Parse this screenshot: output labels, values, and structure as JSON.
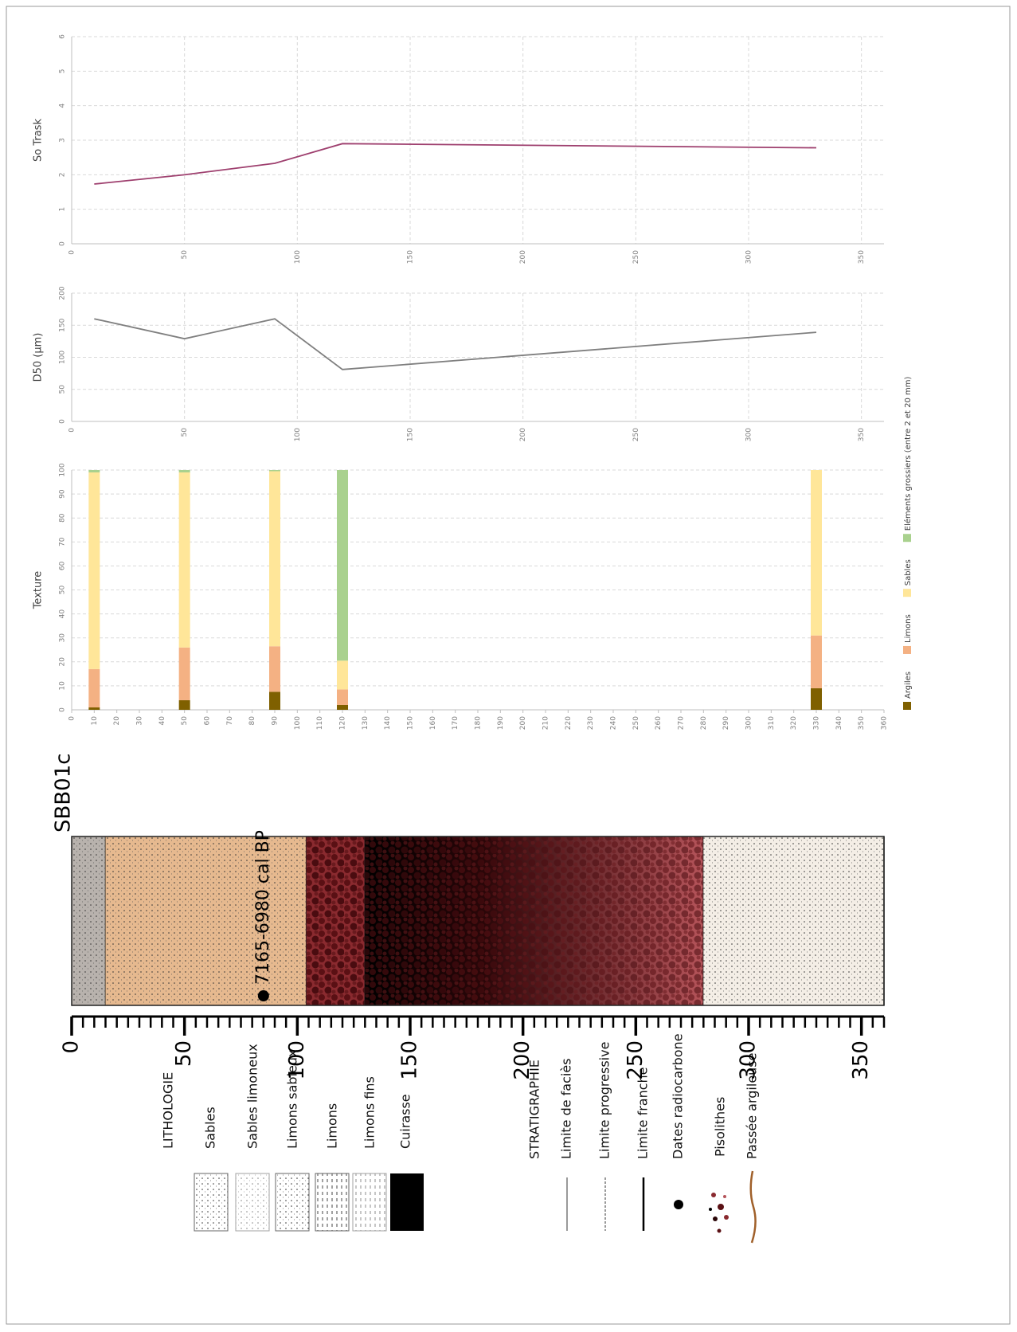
{
  "chart_data": [
    {
      "type": "line",
      "ylabel": "So Trask",
      "x": [
        10,
        50,
        90,
        120,
        330
      ],
      "series": [
        {
          "color": "#9e3f6e",
          "values": [
            1.73,
            2.0,
            2.33,
            2.9,
            2.78
          ]
        }
      ],
      "xlim": [
        0,
        360
      ],
      "ylim": [
        0,
        6
      ],
      "xticks": [
        0,
        50,
        100,
        150,
        200,
        250,
        300,
        350
      ],
      "yticks": [
        0,
        1,
        2,
        3,
        4,
        5,
        6
      ],
      "grid": true
    },
    {
      "type": "line",
      "ylabel": "D50 (µm)",
      "x": [
        10,
        50,
        90,
        120,
        330
      ],
      "series": [
        {
          "color": "#7f7f7f",
          "values": [
            160,
            129,
            160,
            81,
            139
          ]
        }
      ],
      "xlim": [
        0,
        360
      ],
      "ylim": [
        0,
        200
      ],
      "xticks": [
        0,
        50,
        100,
        150,
        200,
        250,
        300,
        350
      ],
      "yticks": [
        0,
        50,
        100,
        150,
        200
      ],
      "grid": true
    },
    {
      "type": "bar",
      "stacked": true,
      "ylabel": "Texture",
      "x": [
        10,
        50,
        90,
        120,
        330
      ],
      "series": [
        {
          "name": "Argiles",
          "color": "#7f6000",
          "values": [
            1,
            4,
            7.5,
            2,
            9
          ]
        },
        {
          "name": "Limons",
          "color": "#f4b183",
          "values": [
            16,
            22,
            19,
            6.5,
            22
          ]
        },
        {
          "name": "Sables",
          "color": "#ffe699",
          "values": [
            82,
            73,
            73,
            12,
            69
          ]
        },
        {
          "name": "Eléments grossiers (entre 2 et 20 mm)",
          "color": "#a9d18e",
          "values": [
            1,
            1,
            0.5,
            79.5,
            0
          ]
        }
      ],
      "xlim": [
        0,
        360
      ],
      "ylim": [
        0,
        100
      ],
      "xticks": [
        0,
        10,
        20,
        30,
        40,
        50,
        60,
        70,
        80,
        90,
        100,
        110,
        120,
        130,
        140,
        150,
        160,
        170,
        180,
        190,
        200,
        210,
        220,
        230,
        240,
        250,
        260,
        270,
        280,
        290,
        300,
        310,
        320,
        330,
        340,
        350,
        360
      ],
      "yticks": [
        0,
        10,
        20,
        30,
        40,
        50,
        60,
        70,
        80,
        90,
        100
      ],
      "grid": true,
      "legend": "right"
    }
  ],
  "log": {
    "name": "SBB01c",
    "lim": [
      0,
      360
    ],
    "ticks": [
      0,
      50,
      100,
      150,
      200,
      250,
      300,
      350
    ],
    "minor_ticks": [
      5,
      10,
      15,
      20,
      25,
      30,
      35,
      40,
      45,
      55,
      60,
      65,
      70,
      75,
      80,
      85,
      90,
      95,
      105,
      110,
      115,
      120,
      125,
      130,
      135,
      140,
      145,
      155,
      160,
      165,
      170,
      175,
      180,
      185,
      190,
      195,
      205,
      210,
      215,
      220,
      225,
      230,
      235,
      240,
      245,
      255,
      260,
      265,
      270,
      275,
      280,
      285,
      290,
      295,
      305,
      310,
      315,
      320,
      325,
      330,
      335,
      340,
      345,
      355,
      360
    ],
    "layers": [
      {
        "from": 0,
        "to": 15,
        "color": "#b8b2ad",
        "texture": "dots"
      },
      {
        "from": 15,
        "to": 104,
        "color": "#e6b98f",
        "texture": "dots"
      },
      {
        "from": 104,
        "to": 130,
        "color": "#8a2a2f",
        "texture": "pisolithes"
      },
      {
        "from": 130,
        "to": 280,
        "color": "#000000",
        "texture": "cuirasse"
      },
      {
        "from": 280,
        "to": 360,
        "color": "#f4eee6",
        "texture": "dots"
      }
    ],
    "date": {
      "depth": 85,
      "label": "7165-6980 cal BP"
    }
  },
  "legend": {
    "lithologie": {
      "title": "LITHOLOGIE",
      "items": [
        "Sables",
        "Sables limoneux",
        "Limons sableux",
        "Limons",
        "Limons fins",
        "Cuirasse"
      ]
    },
    "stratigraphie": {
      "title": "STRATIGRAPHIE",
      "items": [
        "Limite de faciès",
        "Limite progressive",
        "Limite franche",
        "Dates radiocarbone",
        "Pisolithes",
        "Passée argileuse"
      ]
    }
  }
}
